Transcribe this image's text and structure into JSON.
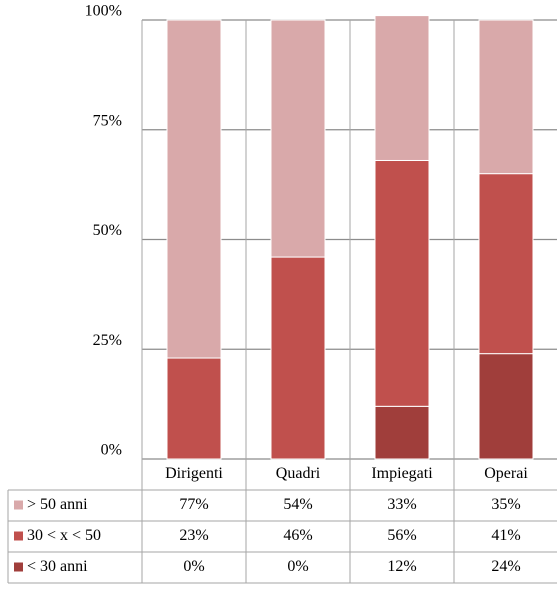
{
  "chart_data": {
    "type": "stacked_bar",
    "categories": [
      "Dirigenti",
      "Quadri",
      "Impiegati",
      "Operai"
    ],
    "series": [
      {
        "name": "> 50 anni",
        "color": "#d9a9aa",
        "values": [
          77,
          54,
          33,
          35
        ],
        "value_labels": [
          "77%",
          "54%",
          "33%",
          "35%"
        ]
      },
      {
        "name": "30 < x < 50",
        "color": "#c0504d",
        "values": [
          23,
          46,
          56,
          41
        ],
        "value_labels": [
          "23%",
          "46%",
          "56%",
          "41%"
        ]
      },
      {
        "name": "< 30 anni",
        "color": "#a03e3b",
        "values": [
          0,
          0,
          12,
          24
        ],
        "value_labels": [
          "0%",
          "0%",
          "12%",
          "24%"
        ]
      }
    ],
    "ylim": [
      0,
      100
    ],
    "yticks": [
      {
        "value": 0,
        "label": "0%"
      },
      {
        "value": 25,
        "label": "25%"
      },
      {
        "value": 50,
        "label": "50%"
      },
      {
        "value": 75,
        "label": "75%"
      },
      {
        "value": 100,
        "label": "100%"
      }
    ],
    "grid": true
  }
}
